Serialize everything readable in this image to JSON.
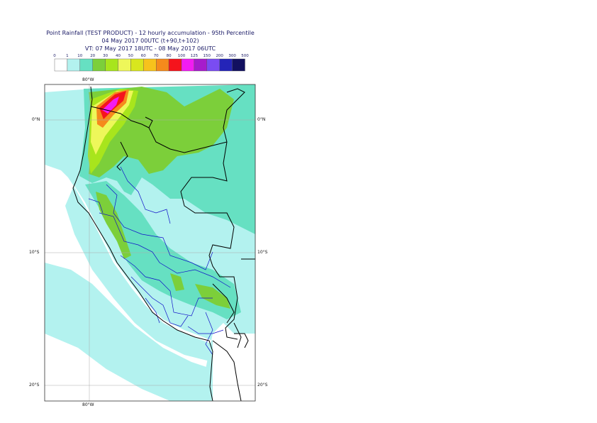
{
  "header": {
    "title": "Point Rainfall (TEST PRODUCT) - 12 hourly accumulation - 95th Percentile",
    "base_time": "04 May 2017 00UTC (t+90,t+102)",
    "valid_time": "VT: 07 May 2017 18UTC - 08 May 2017 06UTC"
  },
  "legend": {
    "ticks": [
      "0",
      "1",
      "10",
      "20",
      "30",
      "40",
      "50",
      "60",
      "70",
      "80",
      "100",
      "125",
      "150",
      "200",
      "300",
      "500"
    ],
    "colors": [
      "#ffffff",
      "#b3f2ef",
      "#66e0c2",
      "#7ccf3a",
      "#a8e51c",
      "#eef75a",
      "#d8e61e",
      "#f7c21c",
      "#f58a1c",
      "#f5141c",
      "#f21cf2",
      "#a61ccc",
      "#7a4cf2",
      "#2424b8",
      "#121060"
    ]
  },
  "map": {
    "lat_labels": [
      "0°N",
      "10°S",
      "20°S"
    ],
    "lon_labels": [
      "80°W",
      "80°W"
    ],
    "colors": {
      "ocean_light": "#b3f2ef",
      "land_teal": "#66e0c2",
      "green": "#7ccf3a",
      "lime": "#a8e51c",
      "yellow": "#eef75a",
      "orange": "#f58a1c",
      "red": "#f5141c",
      "magenta": "#f21cf2",
      "country_border": "#000000",
      "region_border": "#1010c8",
      "grid": "#aaaaaa"
    }
  }
}
